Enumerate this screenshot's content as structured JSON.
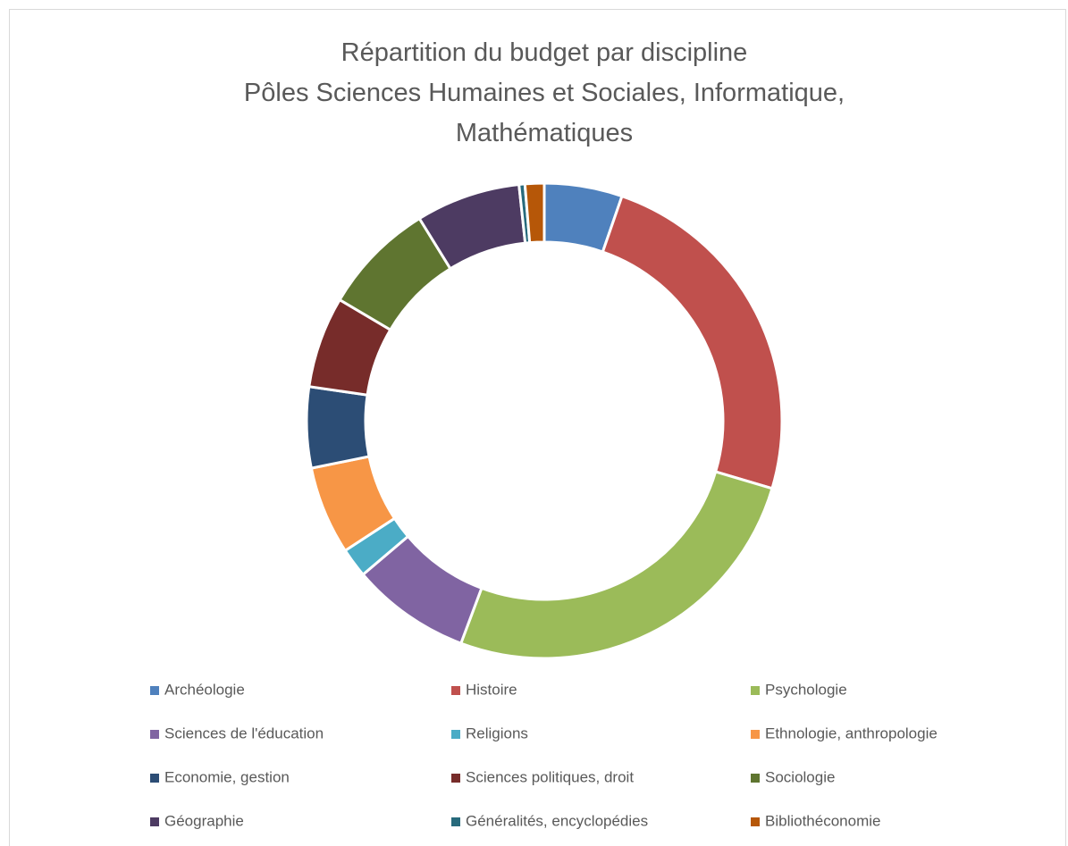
{
  "chart_data": {
    "type": "donut",
    "title": "Répartition du budget par discipline",
    "subtitle": "Pôles Sciences Humaines et Sociales, Informatique, Mathématiques",
    "categories": [
      "Archéologie",
      "Histoire",
      "Psychologie",
      "Sciences de l'éducation",
      "Religions",
      "Ethnologie, anthropologie",
      "Economie, gestion",
      "Sciences politiques, droit",
      "Sociologie",
      "Géographie",
      "Généralités, encyclopédies",
      "Bibliothéconomie"
    ],
    "values": [
      5.3,
      24.3,
      26.1,
      8.1,
      2,
      6,
      5.5,
      6.2,
      7.7,
      7.1,
      0.4,
      1.3
    ],
    "colors": [
      "#4f81bd",
      "#c0504d",
      "#9bbb59",
      "#8064a2",
      "#4bacc6",
      "#f79646",
      "#2c4d75",
      "#772c2a",
      "#5f7530",
      "#4d3b62",
      "#276a7c",
      "#b65708"
    ],
    "legend": "bottom"
  }
}
